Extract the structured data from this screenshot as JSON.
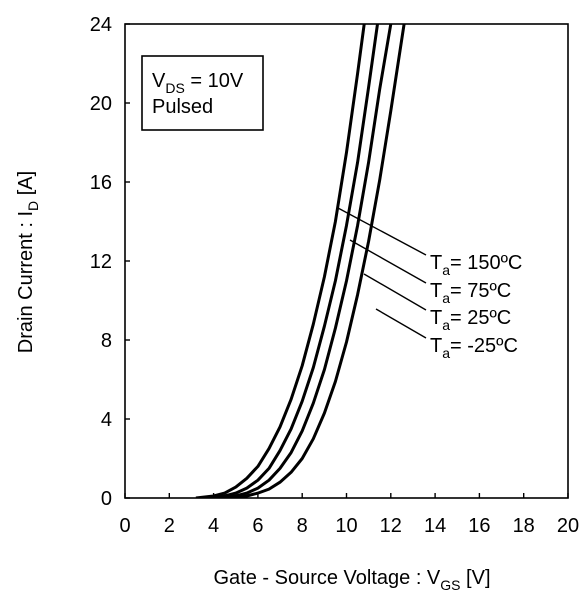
{
  "chart_data": {
    "type": "line",
    "xlabel": {
      "main": "Gate - Source Voltage : V",
      "sub": "GS",
      "unit": " [V]"
    },
    "ylabel": {
      "main": "Drain Current : I",
      "sub": "D",
      "unit": " [A]"
    },
    "xlim": [
      0,
      20
    ],
    "ylim": [
      0,
      24
    ],
    "x_ticks": [
      0,
      2,
      4,
      6,
      8,
      10,
      12,
      14,
      16,
      18,
      20
    ],
    "y_ticks": [
      0,
      4,
      8,
      12,
      16,
      20,
      24
    ],
    "grid": false,
    "condition_box": {
      "line1_main": "V",
      "line1_sub": "DS",
      "line1_rest": " = 10V",
      "line2": "Pulsed"
    },
    "series": [
      {
        "name_main": "T",
        "name_sub": "a",
        "name_rest": "= 150ºC",
        "points": [
          [
            3.2,
            0
          ],
          [
            4.0,
            0.1
          ],
          [
            4.5,
            0.25
          ],
          [
            5.0,
            0.55
          ],
          [
            5.5,
            1.0
          ],
          [
            6.0,
            1.6
          ],
          [
            6.5,
            2.5
          ],
          [
            7.0,
            3.6
          ],
          [
            7.5,
            5.0
          ],
          [
            8.0,
            6.7
          ],
          [
            8.5,
            8.8
          ],
          [
            9.0,
            11.2
          ],
          [
            9.5,
            14.0
          ],
          [
            10.0,
            17.5
          ],
          [
            10.5,
            21.5
          ],
          [
            10.8,
            24
          ]
        ]
      },
      {
        "name_main": "T",
        "name_sub": "a",
        "name_rest": "= 75ºC",
        "points": [
          [
            3.8,
            0
          ],
          [
            4.5,
            0.1
          ],
          [
            5.0,
            0.25
          ],
          [
            5.5,
            0.5
          ],
          [
            6.0,
            0.9
          ],
          [
            6.5,
            1.5
          ],
          [
            7.0,
            2.4
          ],
          [
            7.5,
            3.5
          ],
          [
            8.0,
            4.9
          ],
          [
            8.5,
            6.6
          ],
          [
            9.0,
            8.7
          ],
          [
            9.5,
            11.0
          ],
          [
            10.0,
            13.8
          ],
          [
            10.5,
            17.0
          ],
          [
            11.0,
            20.8
          ],
          [
            11.4,
            24
          ]
        ]
      },
      {
        "name_main": "T",
        "name_sub": "a",
        "name_rest": "= 25ºC",
        "points": [
          [
            4.3,
            0
          ],
          [
            5.0,
            0.1
          ],
          [
            5.5,
            0.25
          ],
          [
            6.0,
            0.5
          ],
          [
            6.5,
            0.9
          ],
          [
            7.0,
            1.5
          ],
          [
            7.5,
            2.3
          ],
          [
            8.0,
            3.4
          ],
          [
            8.5,
            4.8
          ],
          [
            9.0,
            6.5
          ],
          [
            9.5,
            8.6
          ],
          [
            10.0,
            11.0
          ],
          [
            10.5,
            13.8
          ],
          [
            11.0,
            17.0
          ],
          [
            11.5,
            20.7
          ],
          [
            12.0,
            24
          ]
        ]
      },
      {
        "name_main": "T",
        "name_sub": "a",
        "name_rest": "= -25ºC",
        "points": [
          [
            4.8,
            0
          ],
          [
            5.5,
            0.1
          ],
          [
            6.0,
            0.25
          ],
          [
            6.5,
            0.45
          ],
          [
            7.0,
            0.8
          ],
          [
            7.5,
            1.3
          ],
          [
            8.0,
            2.0
          ],
          [
            8.5,
            3.0
          ],
          [
            9.0,
            4.3
          ],
          [
            9.5,
            5.9
          ],
          [
            10.0,
            7.9
          ],
          [
            10.5,
            10.3
          ],
          [
            11.0,
            13.0
          ],
          [
            11.5,
            16.1
          ],
          [
            12.0,
            19.6
          ],
          [
            12.6,
            24
          ]
        ]
      }
    ],
    "legend_placement": "right, with leader lines to curves"
  }
}
